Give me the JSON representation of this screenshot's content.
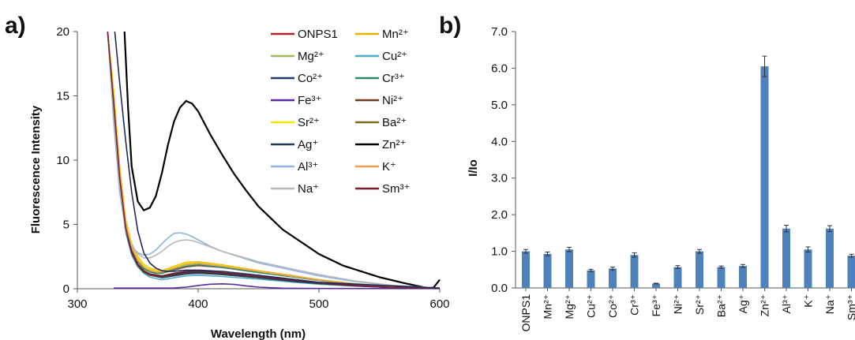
{
  "chart_data": [
    {
      "panel_label": "a)",
      "type": "line",
      "xlabel": "Wavelength (nm)",
      "ylabel": "Fluorescence Intensity",
      "xlim": [
        300,
        600
      ],
      "ylim": [
        0,
        20
      ],
      "xticks": [
        "300",
        "400",
        "500",
        "600"
      ],
      "yticks": [
        "0",
        "5",
        "10",
        "15",
        "20"
      ],
      "legend_position": "top-right",
      "series": [
        {
          "name": "ONPS1",
          "color": "#b0252a",
          "x": [
            325,
            330,
            335,
            340,
            345,
            350,
            355,
            360,
            365,
            370,
            380,
            390,
            400,
            420,
            450,
            480,
            500,
            530,
            560,
            600
          ],
          "y": [
            20,
            15,
            9,
            5,
            3.2,
            2.2,
            1.7,
            1.4,
            1.25,
            1.2,
            1.45,
            1.7,
            1.8,
            1.65,
            1.3,
            0.9,
            0.65,
            0.35,
            0.15,
            0.05
          ]
        },
        {
          "name": "Mn²⁺",
          "color": "#e8b400",
          "x": [
            325,
            330,
            335,
            340,
            345,
            350,
            355,
            360,
            365,
            370,
            380,
            390,
            400,
            420,
            450,
            480,
            500,
            530,
            560,
            600
          ],
          "y": [
            20,
            15.5,
            9.5,
            5.4,
            3.5,
            2.5,
            1.9,
            1.6,
            1.45,
            1.4,
            1.75,
            2.05,
            2.1,
            1.85,
            1.4,
            1.0,
            0.7,
            0.38,
            0.18,
            0.05
          ]
        },
        {
          "name": "Mg²⁺",
          "color": "#9bbb59",
          "x": [
            325,
            330,
            335,
            340,
            345,
            350,
            355,
            360,
            365,
            370,
            380,
            390,
            400,
            420,
            450,
            480,
            500,
            530,
            560,
            600
          ],
          "y": [
            20,
            15,
            9,
            5,
            3.1,
            2.1,
            1.6,
            1.35,
            1.25,
            1.25,
            1.55,
            1.85,
            1.95,
            1.75,
            1.35,
            0.95,
            0.7,
            0.38,
            0.16,
            0.05
          ]
        },
        {
          "name": "Cu²⁺",
          "color": "#4bacc6",
          "x": [
            325,
            330,
            335,
            340,
            345,
            350,
            355,
            360,
            370,
            380,
            390,
            400,
            420,
            450,
            480,
            500,
            530,
            560,
            600
          ],
          "y": [
            20,
            14,
            8.2,
            4.4,
            2.6,
            1.7,
            1.2,
            0.9,
            0.7,
            0.85,
            1.0,
            1.05,
            0.95,
            0.75,
            0.5,
            0.35,
            0.2,
            0.1,
            0.03
          ]
        },
        {
          "name": "Co²⁺",
          "color": "#1f3a6e",
          "x": [
            325,
            330,
            335,
            340,
            345,
            350,
            355,
            360,
            370,
            380,
            390,
            400,
            420,
            450,
            480,
            500,
            530,
            560,
            600
          ],
          "y": [
            20,
            14.5,
            8.5,
            4.6,
            2.8,
            1.8,
            1.3,
            1.05,
            0.85,
            1.0,
            1.15,
            1.2,
            1.1,
            0.85,
            0.55,
            0.4,
            0.22,
            0.1,
            0.03
          ]
        },
        {
          "name": "Cr³⁺",
          "color": "#2e8b6a",
          "x": [
            325,
            330,
            335,
            340,
            345,
            350,
            355,
            360,
            365,
            370,
            380,
            390,
            400,
            420,
            450,
            480,
            500,
            530,
            560,
            600
          ],
          "y": [
            20,
            15,
            9,
            5,
            3.1,
            2.1,
            1.55,
            1.3,
            1.2,
            1.2,
            1.5,
            1.75,
            1.85,
            1.65,
            1.25,
            0.9,
            0.65,
            0.35,
            0.15,
            0.05
          ]
        },
        {
          "name": "Fe³⁺",
          "color": "#5b2a9e",
          "x": [
            330,
            335,
            340,
            345,
            350,
            360,
            370,
            380,
            390,
            400,
            410,
            420,
            430,
            440,
            450,
            470,
            500,
            600
          ],
          "y": [
            0.05,
            0.05,
            0.05,
            0.05,
            0.05,
            0.05,
            0.05,
            0.06,
            0.12,
            0.25,
            0.35,
            0.38,
            0.33,
            0.22,
            0.12,
            0.04,
            0.02,
            0.01
          ]
        },
        {
          "name": "Ni²⁺",
          "color": "#6b3a1f",
          "x": [
            325,
            330,
            335,
            340,
            345,
            350,
            355,
            360,
            370,
            380,
            390,
            400,
            420,
            450,
            480,
            500,
            530,
            560,
            600
          ],
          "y": [
            20,
            14.5,
            8.5,
            4.6,
            2.8,
            1.8,
            1.3,
            1.05,
            0.9,
            1.05,
            1.2,
            1.25,
            1.1,
            0.85,
            0.6,
            0.42,
            0.23,
            0.1,
            0.03
          ]
        },
        {
          "name": "Sr²⁺",
          "color": "#f2e400",
          "x": [
            325,
            330,
            335,
            340,
            345,
            350,
            355,
            360,
            365,
            370,
            380,
            390,
            400,
            420,
            450,
            480,
            500,
            530,
            560,
            600
          ],
          "y": [
            20,
            15.5,
            9.4,
            5.3,
            3.4,
            2.4,
            1.85,
            1.55,
            1.4,
            1.35,
            1.7,
            2.0,
            2.05,
            1.8,
            1.35,
            0.95,
            0.68,
            0.36,
            0.17,
            0.05
          ]
        },
        {
          "name": "Ba²⁺",
          "color": "#7f6a1e",
          "x": [
            325,
            330,
            335,
            340,
            345,
            350,
            355,
            360,
            370,
            380,
            390,
            400,
            420,
            450,
            480,
            500,
            530,
            560,
            600
          ],
          "y": [
            20,
            14.5,
            8.5,
            4.7,
            2.9,
            1.9,
            1.4,
            1.15,
            1.0,
            1.15,
            1.3,
            1.35,
            1.2,
            0.9,
            0.62,
            0.45,
            0.25,
            0.11,
            0.03
          ]
        },
        {
          "name": "Ag⁺",
          "color": "#243b55",
          "x": [
            325,
            330,
            335,
            340,
            345,
            350,
            355,
            360,
            370,
            380,
            390,
            400,
            420,
            450,
            480,
            500,
            530,
            560,
            600
          ],
          "y": [
            20,
            14.5,
            8.6,
            4.7,
            2.9,
            1.9,
            1.4,
            1.15,
            0.95,
            1.1,
            1.25,
            1.3,
            1.15,
            0.88,
            0.6,
            0.43,
            0.24,
            0.1,
            0.03
          ]
        },
        {
          "name": "Zn²⁺",
          "color": "#000000",
          "x": [
            339,
            342,
            345,
            350,
            355,
            360,
            365,
            370,
            375,
            380,
            385,
            390,
            395,
            400,
            410,
            420,
            430,
            440,
            450,
            470,
            500,
            520,
            550,
            570,
            590,
            595,
            600
          ],
          "y": [
            20,
            14,
            9.5,
            6.8,
            6.1,
            6.3,
            7.2,
            9.0,
            11.2,
            13.0,
            14.1,
            14.6,
            14.4,
            13.8,
            12.0,
            10.4,
            8.9,
            7.6,
            6.4,
            4.6,
            2.7,
            1.8,
            0.9,
            0.45,
            0.05,
            0.1,
            0.7
          ]
        },
        {
          "name": "Al³⁺",
          "color": "#8eb4e3",
          "x": [
            325,
            330,
            335,
            340,
            345,
            350,
            355,
            360,
            365,
            370,
            375,
            380,
            385,
            390,
            395,
            400,
            410,
            420,
            450,
            480,
            500,
            530,
            560,
            600
          ],
          "y": [
            20,
            13,
            7.5,
            4.5,
            3.3,
            2.8,
            2.6,
            2.7,
            3.0,
            3.5,
            3.95,
            4.3,
            4.35,
            4.25,
            4.05,
            3.8,
            3.3,
            2.9,
            2.0,
            1.4,
            1.0,
            0.55,
            0.25,
            0.05
          ]
        },
        {
          "name": "K⁺",
          "color": "#f0a050",
          "x": [
            325,
            330,
            335,
            340,
            345,
            350,
            355,
            360,
            365,
            370,
            380,
            390,
            400,
            420,
            450,
            480,
            500,
            530,
            560,
            600
          ],
          "y": [
            20,
            15,
            9.2,
            5.1,
            3.2,
            2.2,
            1.7,
            1.45,
            1.3,
            1.3,
            1.6,
            1.9,
            2.0,
            1.75,
            1.35,
            0.95,
            0.68,
            0.36,
            0.16,
            0.05
          ]
        },
        {
          "name": "Na⁺",
          "color": "#b8b8b8",
          "x": [
            325,
            330,
            335,
            340,
            345,
            350,
            355,
            360,
            365,
            370,
            375,
            380,
            385,
            390,
            395,
            400,
            410,
            420,
            450,
            480,
            500,
            530,
            560,
            600
          ],
          "y": [
            20,
            13.5,
            8,
            4.6,
            3.3,
            2.7,
            2.4,
            2.4,
            2.6,
            2.9,
            3.3,
            3.6,
            3.75,
            3.8,
            3.75,
            3.6,
            3.25,
            2.9,
            2.1,
            1.5,
            1.1,
            0.6,
            0.27,
            0.05
          ]
        },
        {
          "name": "Sm³⁺",
          "color": "#7b1f2f",
          "x": [
            325,
            330,
            335,
            340,
            345,
            350,
            355,
            360,
            370,
            380,
            390,
            400,
            420,
            450,
            480,
            500,
            530,
            560,
            600
          ],
          "y": [
            20,
            14.5,
            8.6,
            4.7,
            2.9,
            1.9,
            1.4,
            1.15,
            1.0,
            1.2,
            1.35,
            1.4,
            1.25,
            0.95,
            0.65,
            0.47,
            0.26,
            0.11,
            0.03
          ]
        },
        {
          "name": "",
          "color": "#1f2a5c",
          "x": [
            331,
            333,
            335,
            340,
            345,
            350,
            355,
            360,
            365,
            370,
            375,
            380,
            385,
            390,
            400,
            420,
            450,
            500,
            600
          ],
          "y": [
            20,
            18,
            16,
            11.5,
            7.5,
            4.5,
            2.8,
            2.0,
            1.6,
            1.4,
            1.35,
            1.35,
            1.4,
            1.45,
            1.45,
            1.35,
            1.05,
            0.5,
            0.05
          ]
        }
      ]
    },
    {
      "panel_label": "b)",
      "type": "bar",
      "ylabel": "I/Io",
      "ylim": [
        0,
        7
      ],
      "yticks": [
        "0.0",
        "1.0",
        "2.0",
        "3.0",
        "4.0",
        "5.0",
        "6.0",
        "7.0"
      ],
      "bar_color": "#4f81bd",
      "categories": [
        "ONPS1",
        "Mn²⁺",
        "Mg²⁺",
        "Cu²⁺",
        "Co²⁺",
        "Cr³⁺",
        "Fe³⁺",
        "Ni²⁺",
        "Sr²⁺",
        "Ba²⁺",
        "Ag⁺",
        "Zn²⁺",
        "Al³⁺",
        "K⁺",
        "Na⁺",
        "Sm³⁺"
      ],
      "values": [
        1.0,
        0.93,
        1.05,
        0.48,
        0.53,
        0.9,
        0.12,
        0.57,
        1.0,
        0.57,
        0.6,
        6.05,
        1.62,
        1.05,
        1.62,
        0.88
      ],
      "errors": [
        0.05,
        0.05,
        0.06,
        0.03,
        0.04,
        0.06,
        0.01,
        0.04,
        0.05,
        0.03,
        0.04,
        0.28,
        0.09,
        0.07,
        0.08,
        0.04
      ]
    }
  ]
}
